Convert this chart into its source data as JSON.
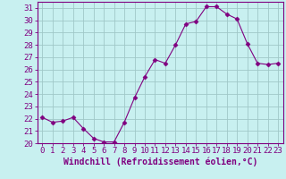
{
  "x": [
    0,
    1,
    2,
    3,
    4,
    5,
    6,
    7,
    8,
    9,
    10,
    11,
    12,
    13,
    14,
    15,
    16,
    17,
    18,
    19,
    20,
    21,
    22,
    23
  ],
  "y": [
    22.1,
    21.7,
    21.8,
    22.1,
    21.2,
    20.4,
    20.1,
    20.1,
    21.7,
    23.7,
    25.4,
    26.8,
    26.5,
    28.0,
    29.7,
    29.9,
    31.1,
    31.1,
    30.5,
    30.1,
    28.1,
    26.5,
    26.4,
    26.5
  ],
  "line_color": "#800080",
  "marker": "D",
  "marker_size": 2.5,
  "bg_color": "#c8f0f0",
  "grid_color": "#a0c8c8",
  "xlabel": "Windchill (Refroidissement éolien,°C)",
  "xlim": [
    -0.5,
    23.5
  ],
  "ylim": [
    20,
    31.5
  ],
  "yticks": [
    20,
    21,
    22,
    23,
    24,
    25,
    26,
    27,
    28,
    29,
    30,
    31
  ],
  "xticks": [
    0,
    1,
    2,
    3,
    4,
    5,
    6,
    7,
    8,
    9,
    10,
    11,
    12,
    13,
    14,
    15,
    16,
    17,
    18,
    19,
    20,
    21,
    22,
    23
  ],
  "spine_color": "#800080",
  "tick_color": "#800080",
  "label_color": "#800080",
  "font_size": 6.5
}
